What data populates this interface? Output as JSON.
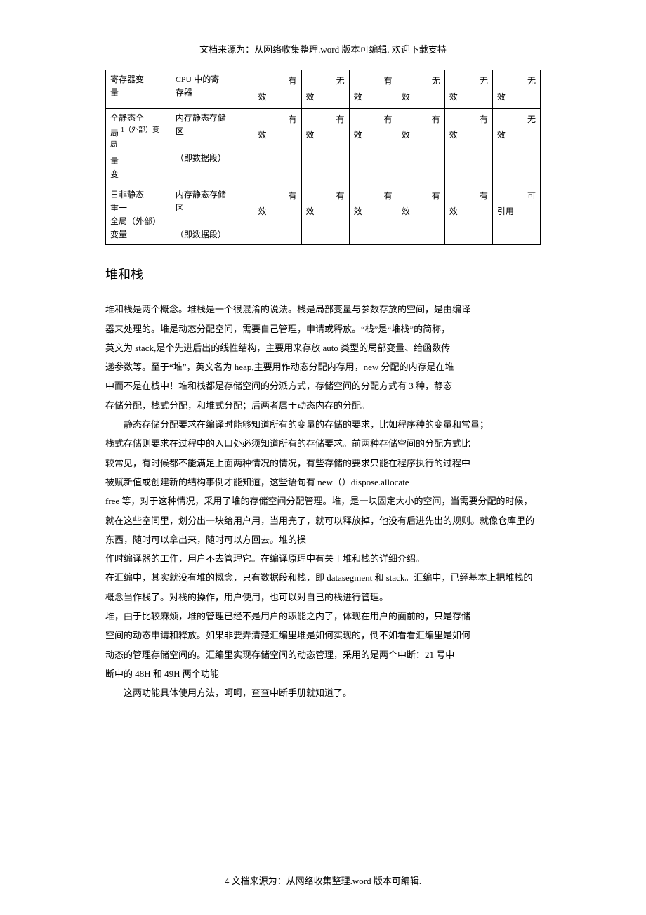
{
  "header": "文档来源为：从网络收集整理.word 版本可编辑. 欢迎下载支持",
  "footer": "4 文档来源为：从网络收集整理.word 版本可编辑.",
  "table": {
    "rows": [
      {
        "c1": "寄存器变<br>量",
        "c2": "CPU 中的寄<br>存器",
        "c3a": "有",
        "c3b": "效",
        "c4a": "无",
        "c4b": "效",
        "c5a": "有",
        "c5b": "效",
        "c6a": "无",
        "c6b": "效",
        "c7a": "无",
        "c7b": "效",
        "c8a": "无",
        "c8b": "效"
      },
      {
        "c1": "全静态全<br>局 <sup>1（外部）变局</sup><br>量<br>变",
        "c2": "内存静态存储<br>区<br><br>（即数据段）",
        "c3a": "有",
        "c3b": "效",
        "c4a": "有",
        "c4b": "效",
        "c5a": "有",
        "c5b": "效",
        "c6a": "有",
        "c6b": "效",
        "c7a": "有",
        "c7b": "效",
        "c8a": "无",
        "c8b": "效"
      },
      {
        "c1": "日非静态<br>重一<br>全局（外部）<br>变量",
        "c2": "内存静态存储<br>区<br><br>（即数据段）",
        "c3a": "有",
        "c3b": "效",
        "c4a": "有",
        "c4b": "效",
        "c5a": "有",
        "c5b": "效",
        "c6a": "有",
        "c6b": "效",
        "c7a": "有",
        "c7b": "效",
        "c8a": "可",
        "c8b": "引用"
      }
    ]
  },
  "section_title": "堆和栈",
  "paragraphs": [
    "堆和栈是两个概念。堆栈是一个很混淆的说法。栈是局部变量与参数存放的空间，是由编译",
    "器来处理的。堆是动态分配空间，需要自己管理，申请或释放。“栈”是“堆栈”的简称，",
    "英文为 stack,是个先进后出的线性结构，主要用来存放 auto 类型的局部变量、给函数传",
    "递参数等。至于“堆”，英文名为 heap,主要用作动态分配内存用，new 分配的内存是在堆",
    "中而不是在栈中！堆和栈都是存储空间的分派方式，存储空间的分配方式有 3 种，静态",
    "存储分配，栈式分配，和堆式分配；后两者属于动态内存的分配。",
    "静态存储分配要求在编译时能够知道所有的变量的存储的要求，比如程序种的变量和常量；",
    "栈式存储则要求在过程中的入口处必须知道所有的存储要求。前两种存储空间的分配方式比",
    "较常见，有时候都不能满足上面两种情况的情况，有些存储的要求只能在程序执行的过程中",
    "被赋新值或创建新的结构事例才能知道，这些语句有 new（）dispose.allocate",
    " free 等，对于这种情况，采用了堆的存储空间分配管理。堆，是一块固定大小的空间，当需要分配的时候，就在这些空间里，划分出一块给用户用，当用完了，就可以释放掉，他没有后进先出的规则。就像仓库里的东西，随时可以拿出来，随时可以方回去。堆的操",
    "作时编译器的工作，用户不去管理它。在编译原理中有关于堆和栈的详细介绍。",
    "  在汇编中，其实就没有堆的概念，只有数据段和栈，即 datasegment 和 stack。汇编中，已经基本上把堆栈的概念当作栈了。对栈的操作，用户使用，也可以对自己的栈进行管理。",
    "堆，由于比较麻烦，堆的管理已经不是用户的职能之内了，体现在用户的面前的，只是存储",
    "空间的动态申请和释放。如果非要弄清楚汇编里堆是如何实现的，倒不如看看汇编里是如何",
    "动态的管理存储空间的。汇编里实现存储空间的动态管理，采用的是两个中断：21 号中",
    "断中的 48H 和 49H 两个功能",
    "这两功能具体使用方法，呵呵，查查中断手册就知道了。"
  ],
  "indent_indexes": [
    6,
    17
  ]
}
